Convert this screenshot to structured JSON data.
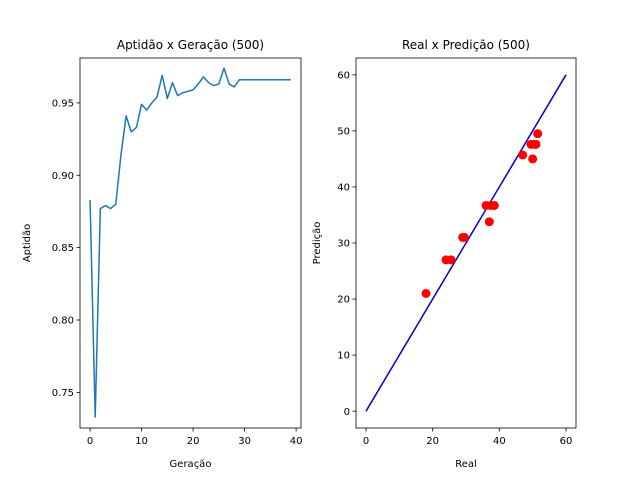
{
  "chart_data": [
    {
      "type": "line",
      "title": "Aptidão x Geração (500)",
      "xlabel": "Geração",
      "ylabel": "Aptidão",
      "xlim": [
        -1.95,
        40.95
      ],
      "ylim": [
        0.7254,
        0.981
      ],
      "xticks": [
        0,
        10,
        20,
        30,
        40
      ],
      "yticks": [
        0.75,
        0.8,
        0.85,
        0.9,
        0.95
      ],
      "xtick_labels": [
        "0",
        "10",
        "20",
        "30",
        "40"
      ],
      "ytick_labels": [
        "0.75",
        "0.80",
        "0.85",
        "0.90",
        "0.95"
      ],
      "grid": false,
      "color": "#1f77b4",
      "series": [
        {
          "x": [
            0,
            1,
            2,
            3,
            4,
            5,
            6,
            7,
            8,
            9,
            10,
            11,
            12,
            13,
            14,
            15,
            16,
            17,
            18,
            19,
            20,
            21,
            22,
            23,
            24,
            25,
            26,
            27,
            28,
            29,
            30,
            31,
            32,
            33,
            34,
            35,
            36,
            37,
            38,
            39
          ],
          "values": [
            0.883,
            0.733,
            0.877,
            0.879,
            0.877,
            0.88,
            0.914,
            0.941,
            0.93,
            0.933,
            0.949,
            0.945,
            0.95,
            0.954,
            0.969,
            0.953,
            0.964,
            0.955,
            0.957,
            0.958,
            0.959,
            0.963,
            0.968,
            0.964,
            0.962,
            0.963,
            0.974,
            0.963,
            0.961,
            0.966,
            0.966,
            0.966,
            0.966,
            0.966,
            0.966,
            0.966,
            0.966,
            0.966,
            0.966,
            0.966
          ]
        }
      ]
    },
    {
      "type": "scatter",
      "title": "Real x Predição (500)",
      "xlabel": "Real",
      "ylabel": "Predição",
      "xlim": [
        -3,
        63
      ],
      "ylim": [
        -3,
        63
      ],
      "xticks": [
        0,
        20,
        40,
        60
      ],
      "yticks": [
        0,
        10,
        20,
        30,
        40,
        50,
        60
      ],
      "xtick_labels": [
        "0",
        "20",
        "40",
        "60"
      ],
      "ytick_labels": [
        "0",
        "10",
        "20",
        "30",
        "40",
        "50",
        "60"
      ],
      "grid": false,
      "point_color": "#ff0000",
      "line_color": "#0000cc",
      "reference_line": {
        "x": [
          0,
          60
        ],
        "y": [
          0,
          60
        ]
      },
      "points": {
        "x": [
          18,
          24,
          25.5,
          29,
          29.5,
          36,
          37,
          37.5,
          38.5,
          47,
          49.5,
          50,
          50.5,
          51,
          51.5
        ],
        "y": [
          21,
          27,
          27,
          31,
          31,
          36.7,
          33.8,
          36.7,
          36.7,
          45.7,
          47.6,
          45,
          47.6,
          47.6,
          49.5
        ]
      }
    }
  ]
}
